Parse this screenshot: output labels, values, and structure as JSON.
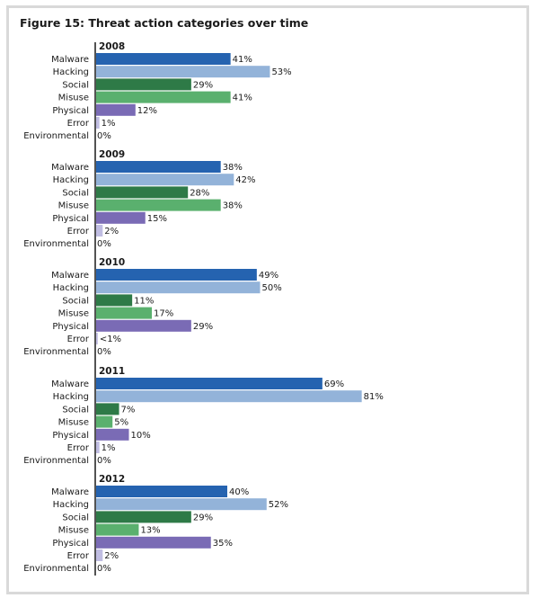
{
  "chart_data": {
    "type": "bar",
    "orientation": "horizontal",
    "title": "Figure 15: Threat action categories over time",
    "categories": [
      "Malware",
      "Hacking",
      "Social",
      "Misuse",
      "Physical",
      "Error",
      "Environmental"
    ],
    "colors": {
      "Malware": "#2563b0",
      "Hacking": "#93b3d9",
      "Social": "#2e7a47",
      "Misuse": "#5ab06e",
      "Physical": "#7a6bb5",
      "Error": "#c0bde2",
      "Environmental": "#d9d9ef"
    },
    "groups": [
      {
        "year": "2008",
        "values": [
          41,
          53,
          29,
          41,
          12,
          1,
          0
        ],
        "labels": [
          "41%",
          "53%",
          "29%",
          "41%",
          "12%",
          "1%",
          "0%"
        ]
      },
      {
        "year": "2009",
        "values": [
          38,
          42,
          28,
          38,
          15,
          2,
          0
        ],
        "labels": [
          "38%",
          "42%",
          "28%",
          "38%",
          "15%",
          "2%",
          "0%"
        ]
      },
      {
        "year": "2010",
        "values": [
          49,
          50,
          11,
          17,
          29,
          0.5,
          0
        ],
        "labels": [
          "49%",
          "50%",
          "11%",
          "17%",
          "29%",
          "<1%",
          "0%"
        ]
      },
      {
        "year": "2011",
        "values": [
          69,
          81,
          7,
          5,
          10,
          1,
          0
        ],
        "labels": [
          "69%",
          "81%",
          "7%",
          "5%",
          "10%",
          "1%",
          "0%"
        ]
      },
      {
        "year": "2012",
        "values": [
          40,
          52,
          29,
          13,
          35,
          2,
          0
        ],
        "labels": [
          "40%",
          "52%",
          "29%",
          "13%",
          "35%",
          "2%",
          "0%"
        ]
      }
    ],
    "xlim": [
      0,
      100
    ],
    "grid": false,
    "legend": "none"
  }
}
